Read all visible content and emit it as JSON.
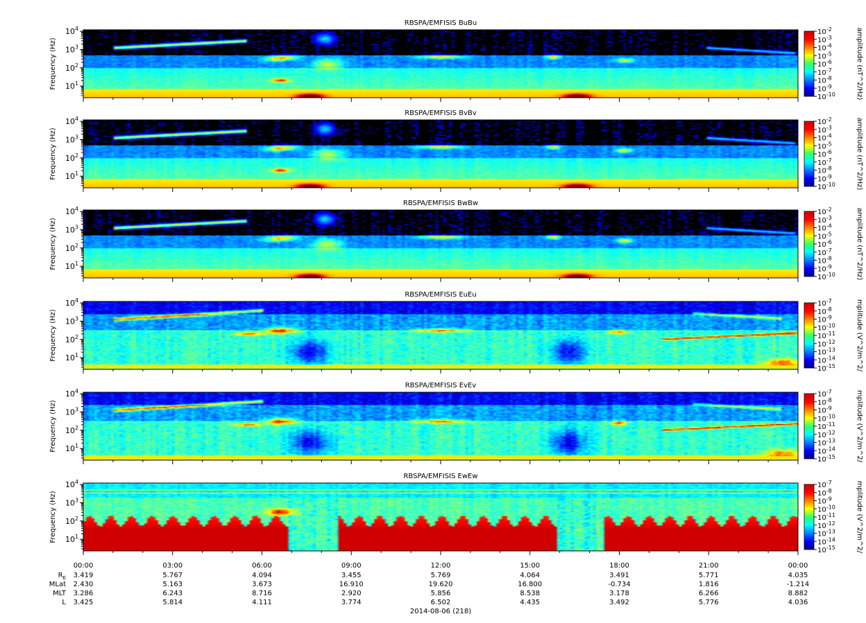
{
  "chart_data": {
    "type": "heatmap",
    "time_ticks": [
      "00:00",
      "03:00",
      "06:00",
      "09:00",
      "12:00",
      "15:00",
      "18:00",
      "21:00",
      "00:00"
    ],
    "date_label": "2014-08-06 (218)",
    "ephemeris": [
      {
        "label": "R",
        "sub": "E",
        "values": [
          "3.419",
          "5.767",
          "4.094",
          "3.455",
          "5.769",
          "4.064",
          "3.491",
          "5.771",
          "4.035"
        ]
      },
      {
        "label": "MLat",
        "sub": "",
        "values": [
          "2.430",
          "5.163",
          "3.673",
          "16.910",
          "19.620",
          "16.800",
          "-0.734",
          "1.816",
          "-1.214"
        ]
      },
      {
        "label": "MLT",
        "sub": "",
        "values": [
          "3.286",
          "6.243",
          "8.716",
          "2.920",
          "5.856",
          "8.538",
          "3.178",
          "6.266",
          "8.882"
        ]
      },
      {
        "label": "L",
        "sub": "",
        "values": [
          "3.425",
          "5.814",
          "4.111",
          "3.774",
          "6.502",
          "4.435",
          "3.492",
          "5.776",
          "4.036"
        ]
      }
    ],
    "y_axis": {
      "label": "Frequency (Hz)",
      "scale": "log",
      "ticks": [
        "10",
        "10",
        "10",
        "10"
      ],
      "tick_exps": [
        "1",
        "2",
        "3",
        "4"
      ],
      "range_hz": [
        2.3,
        12000
      ]
    },
    "panels": [
      {
        "title": "RBSPA/EMFISIS  BuBu",
        "colorbar_label": "amplitude (nT^2/Hz)",
        "cb_exps": [
          "-2",
          "-3",
          "-4",
          "-5",
          "-6",
          "-7",
          "-8",
          "-9",
          "-10"
        ],
        "cb_range_exp": [
          -10,
          -2
        ],
        "cb_base": "10",
        "kind": "B",
        "variant": 0
      },
      {
        "title": "RBSPA/EMFISIS  BvBv",
        "colorbar_label": "amplitude (nT^2/Hz)",
        "cb_exps": [
          "-2",
          "-3",
          "-4",
          "-5",
          "-6",
          "-7",
          "-8",
          "-9",
          "-10"
        ],
        "cb_range_exp": [
          -10,
          -2
        ],
        "cb_base": "10",
        "kind": "B",
        "variant": 1
      },
      {
        "title": "RBSPA/EMFISIS  BwBw",
        "colorbar_label": "amplitude (nT^2/Hz)",
        "cb_exps": [
          "-2",
          "-3",
          "-4",
          "-5",
          "-6",
          "-7",
          "-8",
          "-9",
          "-10"
        ],
        "cb_range_exp": [
          -10,
          -2
        ],
        "cb_base": "10",
        "kind": "B",
        "variant": 2
      },
      {
        "title": "RBSPA/EMFISIS  EuEu",
        "colorbar_label": "mplitude (V^2/m^2/",
        "cb_exps": [
          "-7",
          "-8",
          "-9",
          "-10",
          "-11",
          "-12",
          "-13",
          "-14",
          "-15"
        ],
        "cb_range_exp": [
          -15,
          -7
        ],
        "cb_base": "10",
        "kind": "E",
        "variant": 0
      },
      {
        "title": "RBSPA/EMFISIS  EvEv",
        "colorbar_label": "mplitude (V^2/m^2/",
        "cb_exps": [
          "-7",
          "-8",
          "-9",
          "-10",
          "-11",
          "-12",
          "-13",
          "-14",
          "-15"
        ],
        "cb_range_exp": [
          -15,
          -7
        ],
        "cb_base": "10",
        "kind": "E",
        "variant": 1
      },
      {
        "title": "RBSPA/EMFISIS  EwEw",
        "colorbar_label": "mplitude (V^2/m^2/",
        "cb_exps": [
          "-7",
          "-8",
          "-9",
          "-10",
          "-11",
          "-12",
          "-13",
          "-14",
          "-15"
        ],
        "cb_range_exp": [
          -15,
          -7
        ],
        "cb_base": "10",
        "kind": "Ew",
        "variant": 2
      }
    ]
  }
}
